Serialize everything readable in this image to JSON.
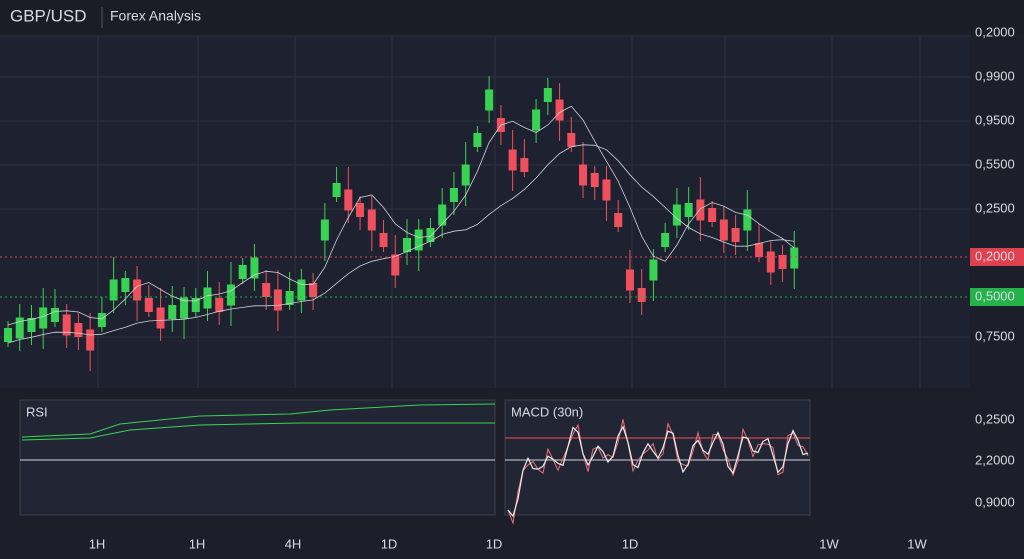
{
  "header": {
    "symbol": "GBP/USD",
    "subtitle": "Forex Analysis"
  },
  "price_axis": {
    "labels": [
      "0,2000",
      "0,9900",
      "0,9500",
      "0,5500",
      "0,2500",
      "0,7500"
    ],
    "markers": [
      {
        "label": "0,2000",
        "color": "#e0414f"
      },
      {
        "label": "0,5000",
        "color": "#23b34a"
      }
    ]
  },
  "rsi": {
    "label": "RSI"
  },
  "macd": {
    "label": "MACD (30n)"
  },
  "indicator_axis": {
    "labels": [
      "0,2500",
      "2,2000",
      "0,9000"
    ]
  },
  "time_axis": {
    "labels": [
      "1H",
      "1H",
      "4H",
      "1D",
      "1D",
      "1D",
      "1W",
      "1W"
    ]
  }
}
